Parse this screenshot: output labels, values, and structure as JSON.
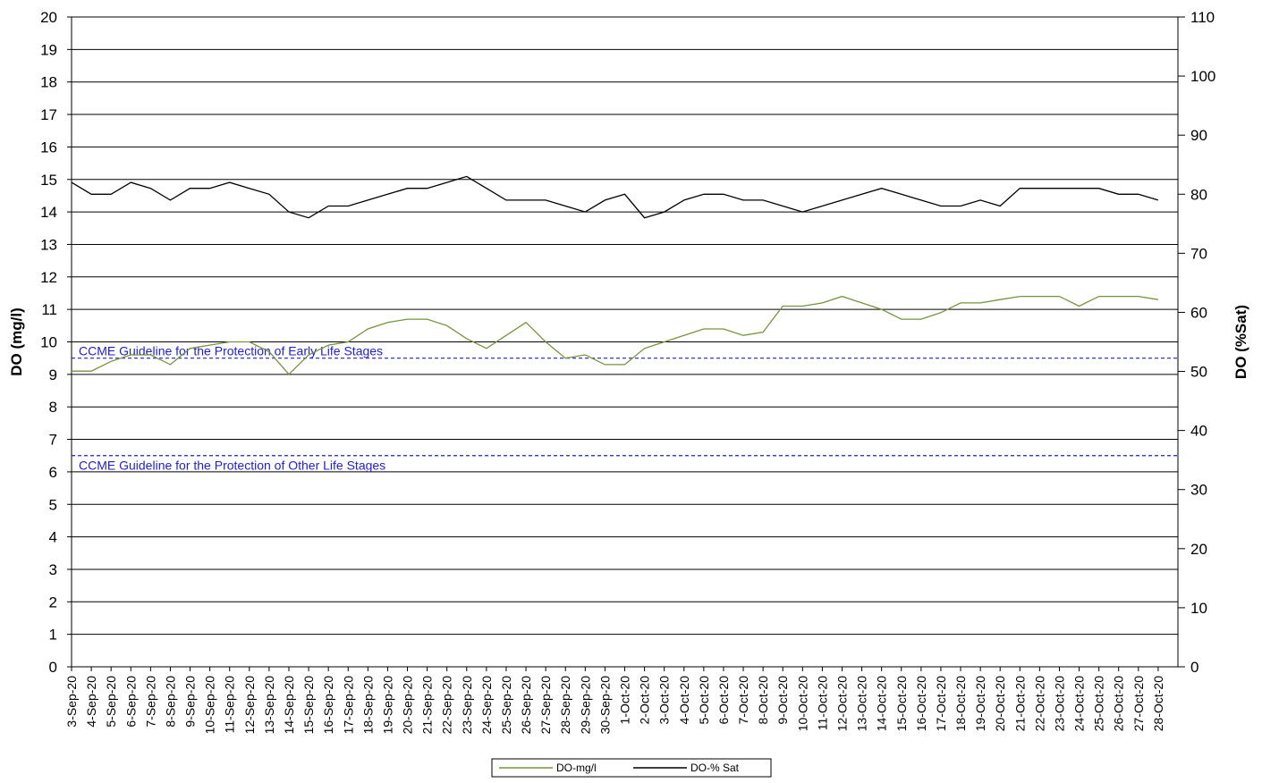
{
  "chart_data": {
    "type": "line",
    "y_label": "DO (mg/l)",
    "y2_label": "DO (%Sat)",
    "categories": [
      "3-Sep-20",
      "4-Sep-20",
      "5-Sep-20",
      "6-Sep-20",
      "7-Sep-20",
      "8-Sep-20",
      "9-Sep-20",
      "10-Sep-20",
      "11-Sep-20",
      "12-Sep-20",
      "13-Sep-20",
      "14-Sep-20",
      "15-Sep-20",
      "16-Sep-20",
      "17-Sep-20",
      "18-Sep-20",
      "19-Sep-20",
      "20-Sep-20",
      "21-Sep-20",
      "22-Sep-20",
      "23-Sep-20",
      "24-Sep-20",
      "25-Sep-20",
      "26-Sep-20",
      "27-Sep-20",
      "28-Sep-20",
      "29-Sep-20",
      "30-Sep-20",
      "1-Oct-20",
      "2-Oct-20",
      "3-Oct-20",
      "4-Oct-20",
      "5-Oct-20",
      "6-Oct-20",
      "7-Oct-20",
      "8-Oct-20",
      "9-Oct-20",
      "10-Oct-20",
      "11-Oct-20",
      "12-Oct-20",
      "13-Oct-20",
      "14-Oct-20",
      "15-Oct-20",
      "16-Oct-20",
      "17-Oct-20",
      "18-Oct-20",
      "19-Oct-20",
      "20-Oct-20",
      "21-Oct-20",
      "22-Oct-20",
      "23-Oct-20",
      "24-Oct-20",
      "25-Oct-20",
      "26-Oct-20",
      "27-Oct-20",
      "28-Oct-20"
    ],
    "series": [
      {
        "name": "DO-mg/l",
        "color": "#77933c",
        "values": [
          9.1,
          9.1,
          9.4,
          9.6,
          9.6,
          9.3,
          9.8,
          9.9,
          10.0,
          10.0,
          9.7,
          9.0,
          9.6,
          9.9,
          10.0,
          10.4,
          10.6,
          10.7,
          10.7,
          10.5,
          10.1,
          9.8,
          10.2,
          10.6,
          10.0,
          9.5,
          9.6,
          9.3,
          9.3,
          9.8,
          10.0,
          10.2,
          10.4,
          10.4,
          10.2,
          10.3,
          11.1,
          11.1,
          11.2,
          11.4,
          11.2,
          11.0,
          10.7,
          10.7,
          10.9,
          11.2,
          11.2,
          11.3,
          11.4,
          11.4,
          11.4,
          11.1,
          11.4,
          11.4,
          11.4,
          11.3
        ]
      },
      {
        "name": "DO-% Sat",
        "color": "#000000",
        "axis": "y2",
        "values": [
          82,
          80,
          80,
          82,
          81,
          79,
          81,
          81,
          82,
          81,
          80,
          77,
          76,
          78,
          78,
          79,
          80,
          81,
          81,
          82,
          83,
          81,
          79,
          79,
          79,
          78,
          77,
          79,
          80,
          76,
          77,
          79,
          80,
          80,
          79,
          79,
          78,
          77,
          78,
          79,
          80,
          81,
          80,
          79,
          78,
          78,
          79,
          78,
          81,
          81,
          81,
          81,
          81,
          80,
          80,
          79
        ]
      }
    ],
    "annotations": [
      {
        "text": "CCME  Guideline for the Protection of Early Life Stages",
        "value": 9.5
      },
      {
        "text": "CCME  Guideline for the Protection of Other Life Stages",
        "value": 6.5
      }
    ],
    "annotation_color": "#1f1fd0",
    "ylim": [
      0,
      20
    ],
    "yticks": [
      0,
      1,
      2,
      3,
      4,
      5,
      6,
      7,
      8,
      9,
      10,
      11,
      12,
      13,
      14,
      15,
      16,
      17,
      18,
      19,
      20
    ],
    "y2lim": [
      0,
      110
    ],
    "y2ticks": [
      0,
      10,
      20,
      30,
      40,
      50,
      60,
      70,
      80,
      90,
      100,
      110
    ],
    "grid": true
  }
}
